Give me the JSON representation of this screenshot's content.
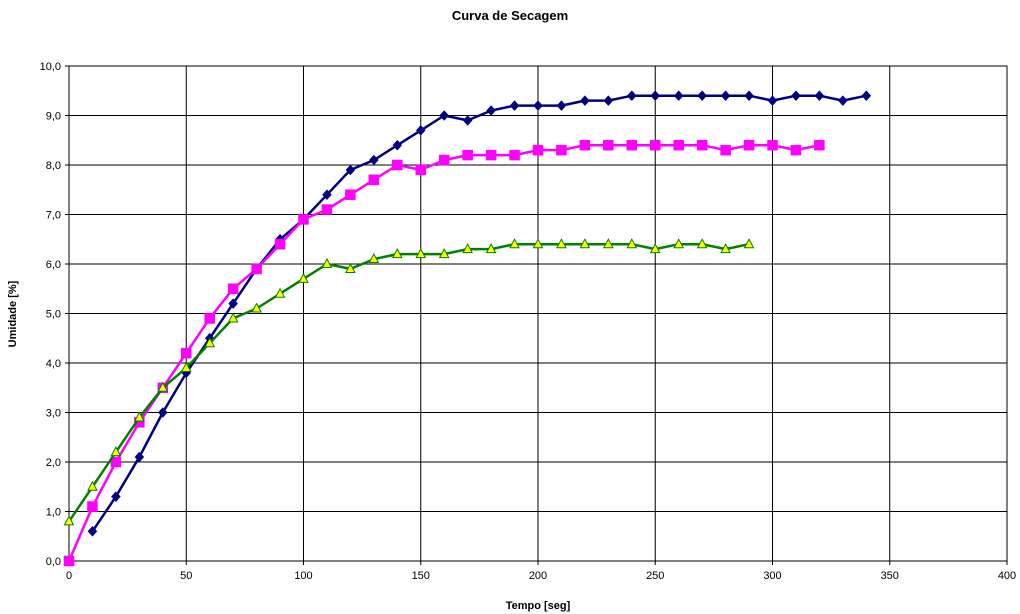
{
  "chart_data": {
    "type": "line",
    "title": "Curva de Secagem",
    "xlabel": "Tempo [seg]",
    "ylabel": "Umidade [%]",
    "xlim": [
      0,
      400
    ],
    "ylim": [
      0,
      10
    ],
    "x_ticks": [
      "0",
      "50",
      "100",
      "150",
      "200",
      "250",
      "300",
      "350",
      "400"
    ],
    "y_ticks": [
      "0,0",
      "1,0",
      "2,0",
      "3,0",
      "4,0",
      "5,0",
      "6,0",
      "7,0",
      "8,0",
      "9,0",
      "10,0"
    ],
    "grid": true,
    "legend": "none",
    "series": [
      {
        "marker": "diamond",
        "color": "#000080",
        "x": [
          10,
          20,
          30,
          40,
          50,
          60,
          70,
          80,
          90,
          100,
          110,
          120,
          130,
          140,
          150,
          160,
          170,
          180,
          190,
          200,
          210,
          220,
          230,
          240,
          250,
          260,
          270,
          280,
          290,
          300,
          310,
          320,
          330,
          340
        ],
        "y": [
          0.6,
          1.3,
          2.1,
          3.0,
          3.8,
          4.5,
          5.2,
          5.9,
          6.5,
          6.9,
          7.4,
          7.9,
          8.1,
          8.4,
          8.7,
          9.0,
          8.9,
          9.1,
          9.2,
          9.2,
          9.2,
          9.3,
          9.3,
          9.4,
          9.4,
          9.4,
          9.4,
          9.4,
          9.4,
          9.3,
          9.4,
          9.4,
          9.3,
          9.4
        ]
      },
      {
        "marker": "square",
        "color": "#FF00FF",
        "x": [
          0,
          10,
          20,
          30,
          40,
          50,
          60,
          70,
          80,
          90,
          100,
          110,
          120,
          130,
          140,
          150,
          160,
          170,
          180,
          190,
          200,
          210,
          220,
          230,
          240,
          250,
          260,
          270,
          280,
          290,
          300,
          310,
          320
        ],
        "y": [
          0.0,
          1.1,
          2.0,
          2.8,
          3.5,
          4.2,
          4.9,
          5.5,
          5.9,
          6.4,
          6.9,
          7.1,
          7.4,
          7.7,
          8.0,
          7.9,
          8.1,
          8.2,
          8.2,
          8.2,
          8.3,
          8.3,
          8.4,
          8.4,
          8.4,
          8.4,
          8.4,
          8.4,
          8.3,
          8.4,
          8.4,
          8.3,
          8.4
        ]
      },
      {
        "marker": "triangle",
        "color": "#008000",
        "marker_fill": "#FFFF00",
        "x": [
          0,
          10,
          20,
          30,
          40,
          50,
          60,
          70,
          80,
          90,
          100,
          110,
          120,
          130,
          140,
          150,
          160,
          170,
          180,
          190,
          200,
          210,
          220,
          230,
          240,
          250,
          260,
          270,
          280,
          290
        ],
        "y": [
          0.8,
          1.5,
          2.2,
          2.9,
          3.5,
          3.9,
          4.4,
          4.9,
          5.1,
          5.4,
          5.7,
          6.0,
          5.9,
          6.1,
          6.2,
          6.2,
          6.2,
          6.3,
          6.3,
          6.4,
          6.4,
          6.4,
          6.4,
          6.4,
          6.4,
          6.3,
          6.4,
          6.4,
          6.3,
          6.4
        ]
      }
    ]
  }
}
